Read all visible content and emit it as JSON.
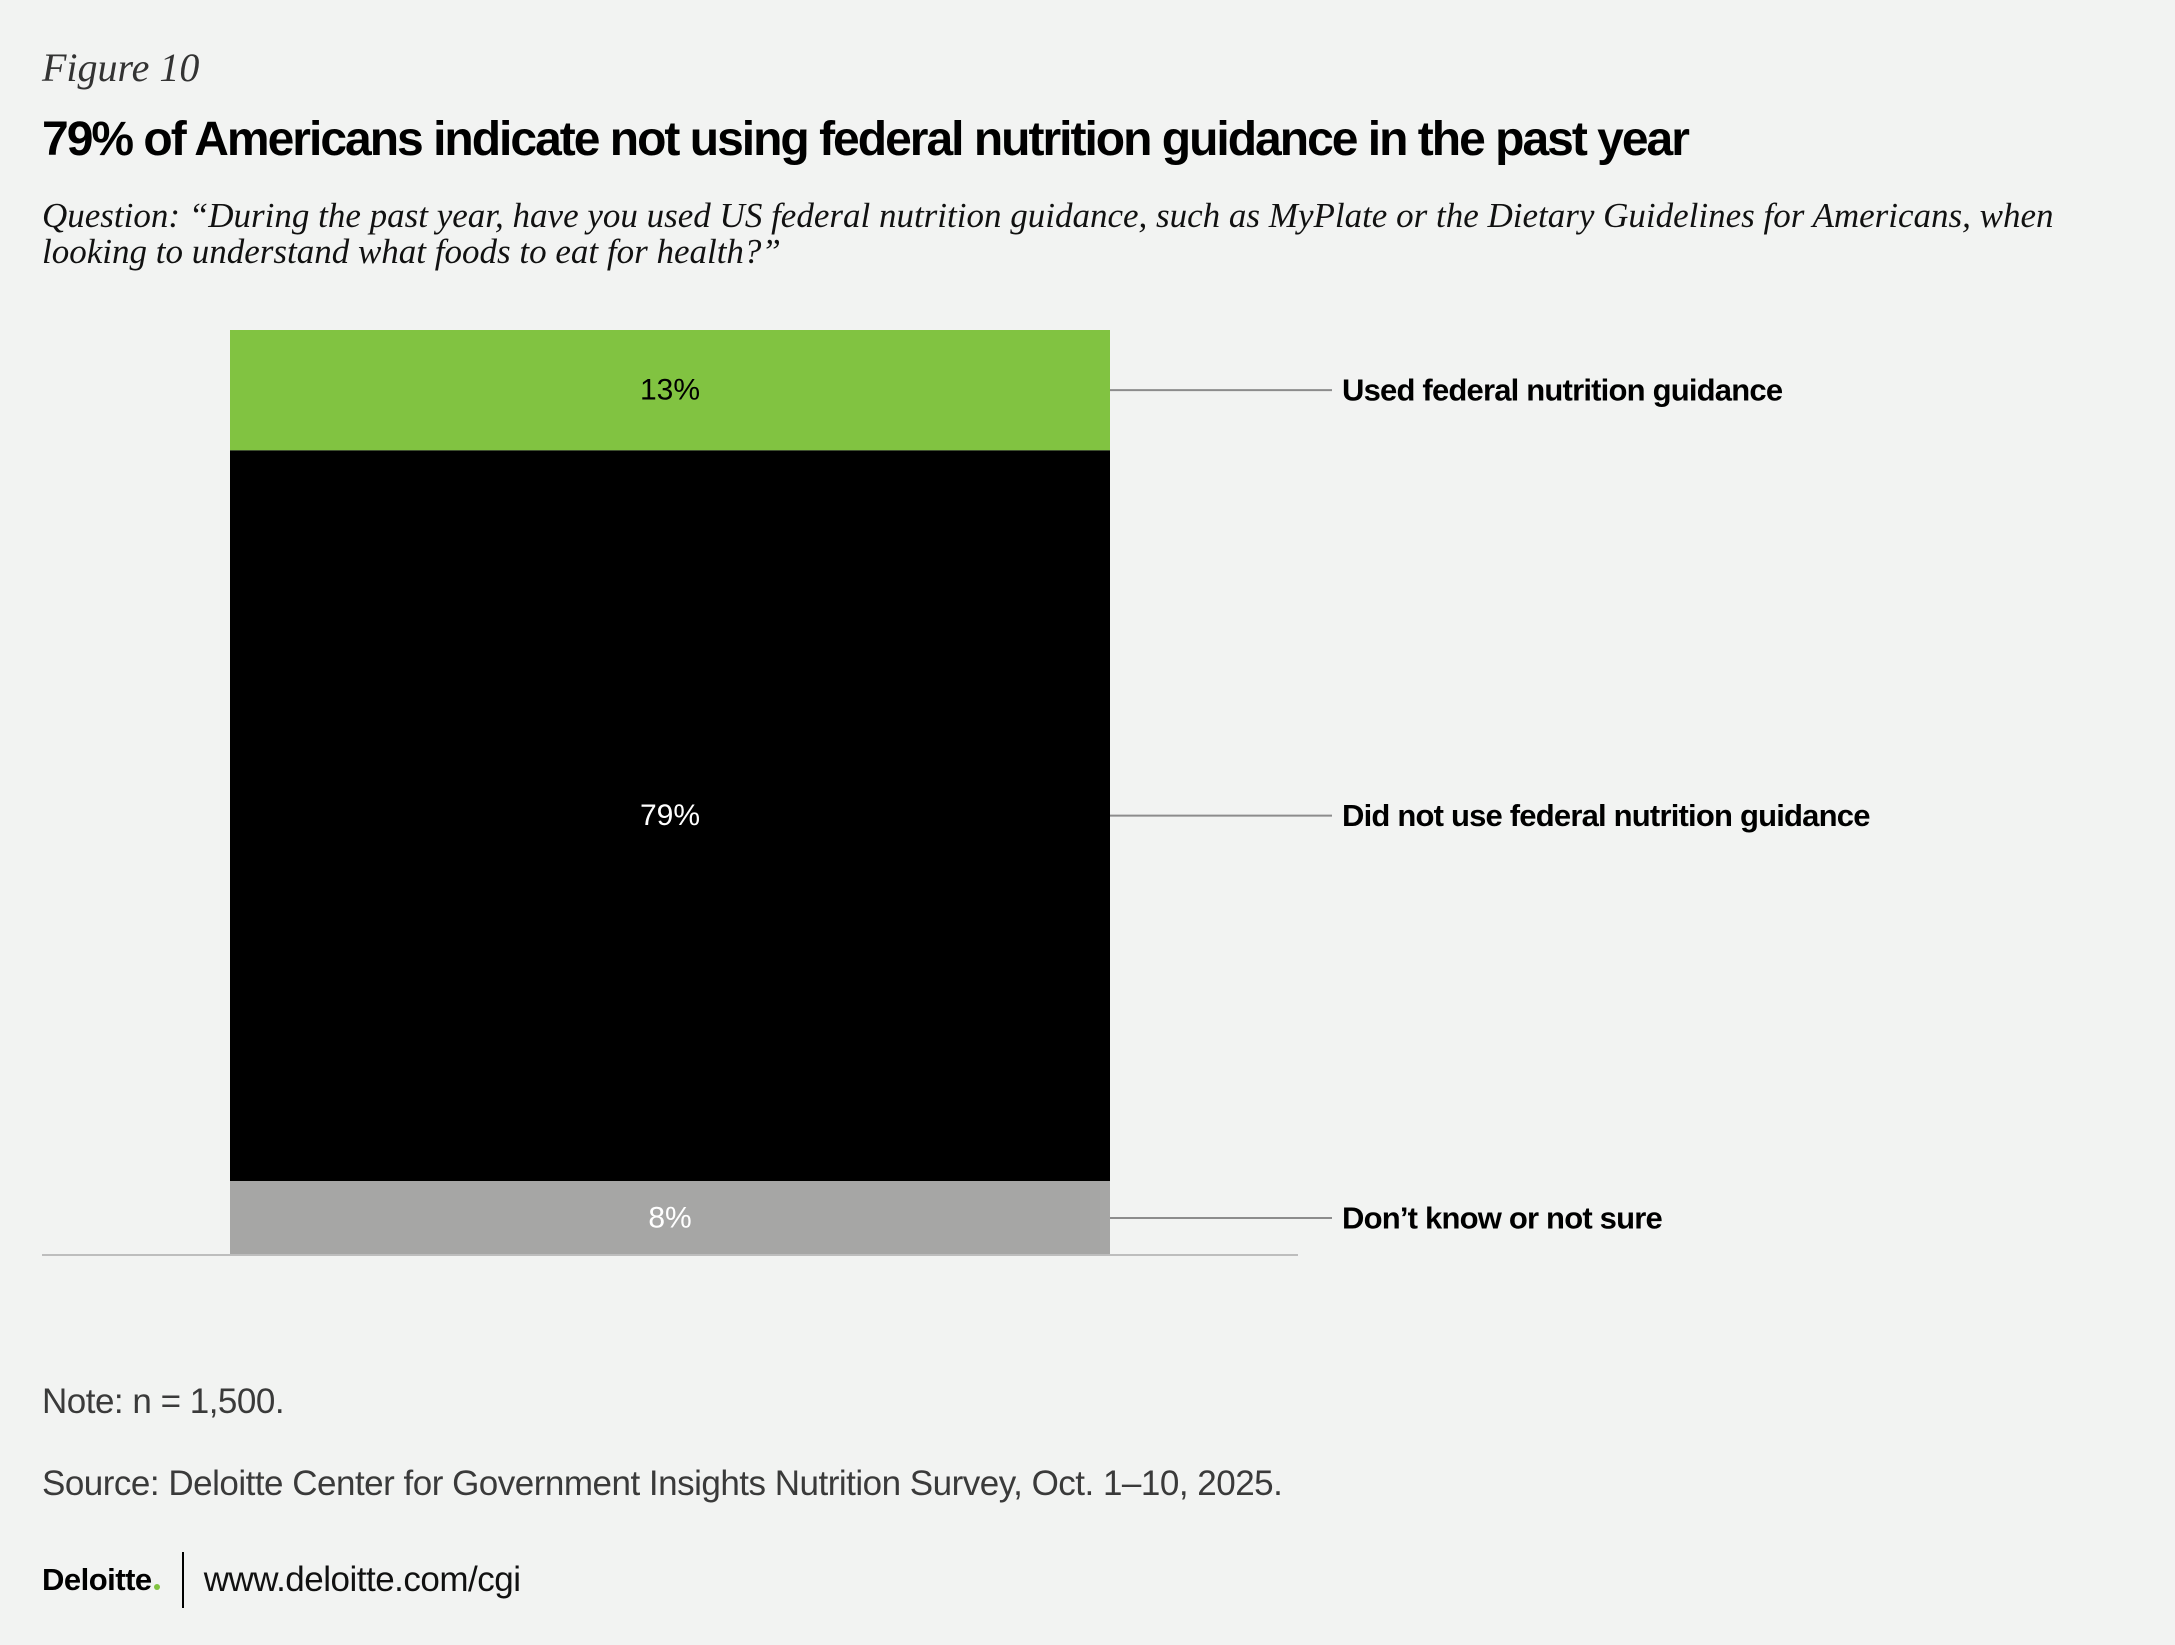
{
  "figure_label": "Figure 10",
  "title": "79% of Americans indicate not using federal nutrition guidance in the past year",
  "question": "Question: “During the past year, have you used US federal nutrition guidance, such as MyPlate or the Dietary Guidelines for Americans, when looking to understand what foods to eat for health?”",
  "chart_data": {
    "type": "bar",
    "stacked": true,
    "categories": [
      ""
    ],
    "series": [
      {
        "name": "Don’t know or not sure",
        "values": [
          8
        ],
        "label": "8%",
        "color": "#a6a6a5",
        "label_color": "#ffffff"
      },
      {
        "name": "Did not use federal nutrition guidance",
        "values": [
          79
        ],
        "label": "79%",
        "color": "#000000",
        "label_color": "#ffffff"
      },
      {
        "name": "Used federal nutrition guidance",
        "values": [
          13
        ],
        "label": "13%",
        "color": "#81c341",
        "label_color": "#000000"
      }
    ],
    "title": "79% of Americans indicate not using federal nutrition guidance in the past year",
    "xlabel": "",
    "ylabel": "",
    "ylim": [
      0,
      100
    ],
    "grid": false
  },
  "note": "Note: n = 1,500.",
  "source": "Source: Deloitte Center for Government Insights Nutrition Survey, Oct. 1–10, 2025.",
  "footer": {
    "logo": "Deloitte",
    "url": "www.deloitte.com/cgi"
  },
  "colors": {
    "background": "#f2f3f2",
    "accent_green": "#81c341",
    "leader_line": "#8c8c8c",
    "baseline": "#bdbdbd"
  }
}
